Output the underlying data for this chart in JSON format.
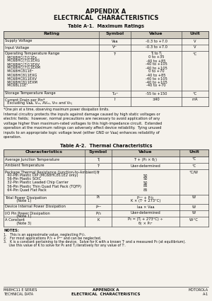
{
  "title_line1": "APPENDIX A",
  "title_line2": "ELECTRICAL  CHARACTERISTICS",
  "table1_title": "Table A-1.  Maximum Ratings",
  "table2_title": "Table A-2.  Thermal Characteristics",
  "bg_color": "#f5f2ec",
  "table_header_bg": "#d0cbbf",
  "line_color": "#444444",
  "text_color": "#111111",
  "footer_left1": "M68HC11 E SERIES",
  "footer_left2": "TECHNICAL DATA",
  "footer_center1": "APPENDIX A",
  "footer_center2": "ELECTRICAL  CHARACTERISTICS",
  "footer_right1": "MOTOROLA",
  "footer_right2": "A-1"
}
